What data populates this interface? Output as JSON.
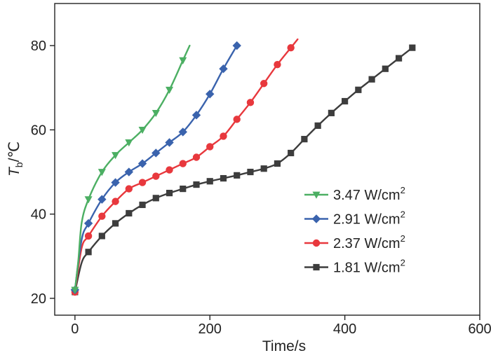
{
  "chart_data": {
    "type": "line",
    "xlabel": "Time/s",
    "ylabel_main": "T",
    "ylabel_sub": "b",
    "ylabel_unit": "/℃",
    "xlim": [
      -30,
      600
    ],
    "ylim": [
      16,
      90
    ],
    "xticks": [
      0,
      200,
      400,
      600
    ],
    "yticks": [
      20,
      40,
      60,
      80
    ],
    "grid": false,
    "legend_position": "lower-right",
    "series": [
      {
        "name": "3.47 W/cm",
        "name_sup": "2",
        "color": "#4caf63",
        "marker": "triangle-down",
        "line": [
          [
            0,
            22
          ],
          [
            5,
            29
          ],
          [
            10,
            38
          ],
          [
            20,
            43.5
          ],
          [
            40,
            50
          ],
          [
            60,
            54
          ],
          [
            80,
            57
          ],
          [
            100,
            60
          ],
          [
            120,
            64
          ],
          [
            140,
            69.5
          ],
          [
            160,
            76.5
          ],
          [
            170,
            80
          ]
        ],
        "markers": [
          [
            0,
            22
          ],
          [
            20,
            43.5
          ],
          [
            40,
            50
          ],
          [
            60,
            54
          ],
          [
            80,
            57
          ],
          [
            100,
            60
          ],
          [
            120,
            64
          ],
          [
            140,
            69.5
          ],
          [
            160,
            76.5
          ]
        ]
      },
      {
        "name": "2.91 W/cm",
        "name_sup": "2",
        "color": "#3a63ad",
        "marker": "diamond",
        "line": [
          [
            0,
            22
          ],
          [
            10,
            34
          ],
          [
            20,
            37.8
          ],
          [
            40,
            43.5
          ],
          [
            60,
            47.5
          ],
          [
            80,
            50
          ],
          [
            100,
            52
          ],
          [
            120,
            54.5
          ],
          [
            140,
            57
          ],
          [
            160,
            59.5
          ],
          [
            180,
            63.5
          ],
          [
            200,
            68.5
          ],
          [
            220,
            74.5
          ],
          [
            240,
            80
          ]
        ],
        "markers": [
          [
            0,
            22
          ],
          [
            20,
            37.8
          ],
          [
            40,
            43.5
          ],
          [
            60,
            47.5
          ],
          [
            80,
            50
          ],
          [
            100,
            52
          ],
          [
            120,
            54.5
          ],
          [
            140,
            57
          ],
          [
            160,
            59.5
          ],
          [
            180,
            63.5
          ],
          [
            200,
            68.5
          ],
          [
            220,
            74.5
          ],
          [
            240,
            80
          ]
        ]
      },
      {
        "name": "2.37 W/cm",
        "name_sup": "2",
        "color": "#e8383d",
        "marker": "circle",
        "line": [
          [
            0,
            21.5
          ],
          [
            10,
            32
          ],
          [
            20,
            34.8
          ],
          [
            40,
            39.5
          ],
          [
            60,
            43
          ],
          [
            80,
            46
          ],
          [
            100,
            47.5
          ],
          [
            120,
            49
          ],
          [
            140,
            50.5
          ],
          [
            160,
            52
          ],
          [
            180,
            53.5
          ],
          [
            200,
            56
          ],
          [
            220,
            58.5
          ],
          [
            240,
            62.5
          ],
          [
            260,
            66.5
          ],
          [
            280,
            71
          ],
          [
            300,
            75.5
          ],
          [
            320,
            79.5
          ],
          [
            330,
            81.5
          ]
        ],
        "markers": [
          [
            0,
            21.5
          ],
          [
            20,
            34.8
          ],
          [
            40,
            39.5
          ],
          [
            60,
            43
          ],
          [
            80,
            46
          ],
          [
            100,
            47.5
          ],
          [
            120,
            49
          ],
          [
            140,
            50.5
          ],
          [
            160,
            52
          ],
          [
            180,
            53.5
          ],
          [
            200,
            56
          ],
          [
            220,
            58.5
          ],
          [
            240,
            62.5
          ],
          [
            260,
            66.5
          ],
          [
            280,
            71
          ],
          [
            300,
            75.5
          ],
          [
            320,
            79.5
          ]
        ]
      },
      {
        "name": "1.81 W/cm",
        "name_sup": "2",
        "color": "#3d3d3d",
        "marker": "square",
        "line": [
          [
            0,
            21.5
          ],
          [
            10,
            28.5
          ],
          [
            20,
            31
          ],
          [
            40,
            34.8
          ],
          [
            60,
            37.8
          ],
          [
            80,
            40.2
          ],
          [
            100,
            42.2
          ],
          [
            120,
            43.8
          ],
          [
            140,
            45
          ],
          [
            160,
            46
          ],
          [
            180,
            47
          ],
          [
            200,
            47.8
          ],
          [
            220,
            48.5
          ],
          [
            240,
            49.2
          ],
          [
            260,
            50
          ],
          [
            280,
            50.8
          ],
          [
            300,
            52
          ],
          [
            320,
            54.5
          ],
          [
            340,
            57.8
          ],
          [
            360,
            61
          ],
          [
            380,
            64
          ],
          [
            400,
            66.8
          ],
          [
            420,
            69.5
          ],
          [
            440,
            72
          ],
          [
            460,
            74.5
          ],
          [
            480,
            77
          ],
          [
            500,
            79.5
          ]
        ],
        "markers": [
          [
            0,
            21.5
          ],
          [
            20,
            31
          ],
          [
            40,
            34.8
          ],
          [
            60,
            37.8
          ],
          [
            80,
            40.2
          ],
          [
            100,
            42.2
          ],
          [
            120,
            43.8
          ],
          [
            140,
            45
          ],
          [
            160,
            46
          ],
          [
            180,
            47
          ],
          [
            200,
            47.8
          ],
          [
            220,
            48.5
          ],
          [
            240,
            49.2
          ],
          [
            260,
            50
          ],
          [
            280,
            50.8
          ],
          [
            300,
            52
          ],
          [
            320,
            54.5
          ],
          [
            340,
            57.8
          ],
          [
            360,
            61
          ],
          [
            380,
            64
          ],
          [
            400,
            66.8
          ],
          [
            420,
            69.5
          ],
          [
            440,
            72
          ],
          [
            460,
            74.5
          ],
          [
            480,
            77
          ],
          [
            500,
            79.5
          ]
        ]
      }
    ]
  }
}
